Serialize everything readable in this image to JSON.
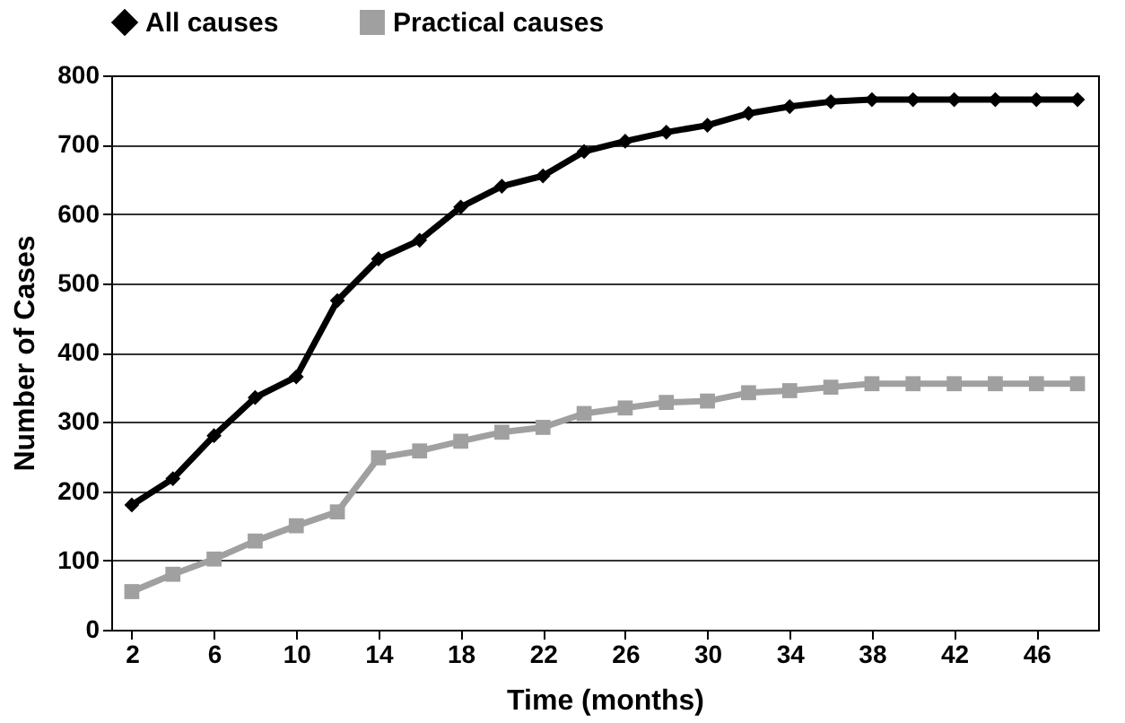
{
  "chart_data": {
    "type": "line",
    "xlabel": "Time (months)",
    "ylabel": "Number of Cases",
    "x": [
      2,
      4,
      6,
      8,
      10,
      12,
      14,
      16,
      18,
      20,
      22,
      24,
      26,
      28,
      30,
      32,
      34,
      36,
      38,
      40,
      42,
      44,
      46,
      48
    ],
    "series": [
      {
        "name": "All causes",
        "color": "#000000",
        "marker": "diamond",
        "values": [
          180,
          218,
          280,
          335,
          365,
          475,
          535,
          562,
          610,
          640,
          655,
          690,
          705,
          718,
          728,
          745,
          755,
          762,
          765,
          765,
          765,
          765,
          765,
          765
        ]
      },
      {
        "name": "Practical causes",
        "color": "#a0a0a0",
        "marker": "square",
        "values": [
          55,
          80,
          102,
          128,
          150,
          170,
          248,
          258,
          272,
          285,
          292,
          312,
          320,
          328,
          330,
          342,
          345,
          350,
          355,
          355,
          355,
          355,
          355,
          355
        ]
      }
    ],
    "xlim": [
      1,
      49
    ],
    "xticks": [
      2,
      6,
      10,
      14,
      18,
      22,
      26,
      30,
      34,
      38,
      42,
      46
    ],
    "ylim": [
      0,
      800
    ],
    "yticks": [
      0,
      100,
      200,
      300,
      400,
      500,
      600,
      700,
      800
    ],
    "grid": "y",
    "legend": "top",
    "line_style": "solid"
  }
}
